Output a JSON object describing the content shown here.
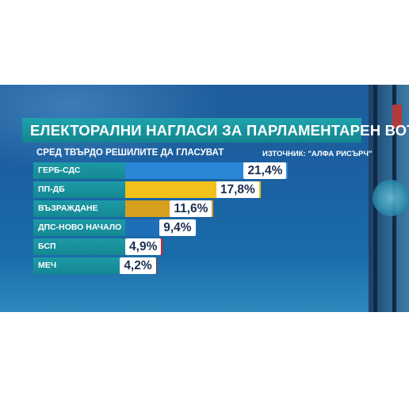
{
  "title": "ЕЛЕКТОРАЛНИ НАГЛАСИ ЗА ПАРЛАМЕНТАРЕН ВОТ",
  "subtitle": "СРЕД ТВЪРДО РЕШИЛИТЕ ДА ГЛАСУВАТ",
  "source": "ИЗТОЧНИК: \"АЛФА РИСЪРЧ\"",
  "chart_data": {
    "type": "bar",
    "orientation": "horizontal",
    "title": "ЕЛЕКТОРАЛНИ НАГЛАСИ ЗА ПАРЛАМЕНТАРЕН ВОТ",
    "subtitle": "СРЕД ТВЪРДО РЕШИЛИТЕ ДА ГЛАСУВАТ",
    "categories": [
      "ГЕРБ-СДС",
      "ПП-ДБ",
      "ВЪЗРАЖДАНЕ",
      "ДПС-НОВО НАЧАЛО",
      "БСП",
      "МЕЧ"
    ],
    "values": [
      21.4,
      17.8,
      11.6,
      9.4,
      4.9,
      4.2
    ],
    "value_labels": [
      "21,4%",
      "17,8%",
      "11,6%",
      "9,4%",
      "4,9%",
      "4,2%"
    ],
    "colors": [
      "#2a86d6",
      "#f2c21a",
      "#d6a01e",
      "#1f6fb8",
      "#d81f2a",
      "#8e2b30"
    ],
    "xlabel": "",
    "ylabel": "",
    "grid": false,
    "legend": "none"
  }
}
